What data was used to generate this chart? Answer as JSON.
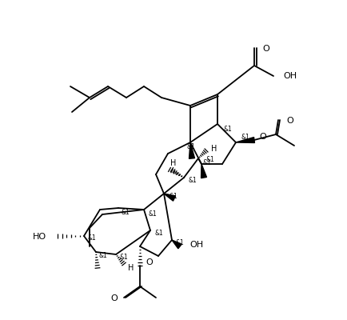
{
  "figsize": [
    4.34,
    4.0
  ],
  "dpi": 100,
  "xlim": [
    0,
    434
  ],
  "ylim": [
    0,
    400
  ],
  "lw": 1.3,
  "lc": "black",
  "bg": "white"
}
